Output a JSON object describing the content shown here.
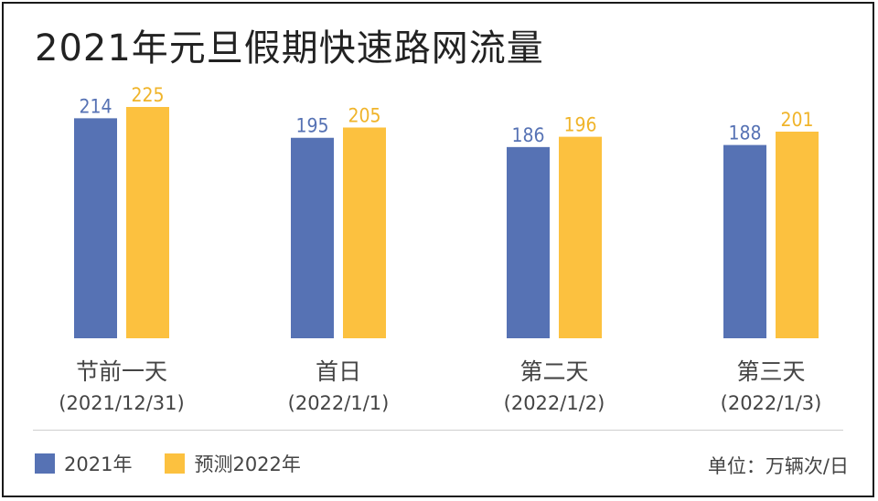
{
  "colors": {
    "series_2021": "#5672b4",
    "series_2022": "#fcc13f",
    "label_2021": "#5672b4",
    "label_2022": "#f0b42a",
    "axis_text": "#444444",
    "title": "#222222"
  },
  "legend_2021": "2021年",
  "legend_2022": "预测2022年",
  "unit_label": "单位：万辆次/日",
  "chart_data": {
    "type": "bar",
    "title": "2021年元旦假期快速路网流量",
    "categories": [
      "节前一天",
      "首日",
      "第二天",
      "第三天"
    ],
    "category_sublabels": [
      "(2021/12/31)",
      "(2022/1/1)",
      "(2022/1/2)",
      "(2022/1/3)"
    ],
    "series": [
      {
        "name": "2021年",
        "values": [
          214,
          195,
          186,
          188
        ]
      },
      {
        "name": "预测2022年",
        "values": [
          225,
          205,
          196,
          201
        ]
      }
    ],
    "ylim": [
      0,
      225
    ],
    "grid": false,
    "legend_position": "bottom-left"
  }
}
